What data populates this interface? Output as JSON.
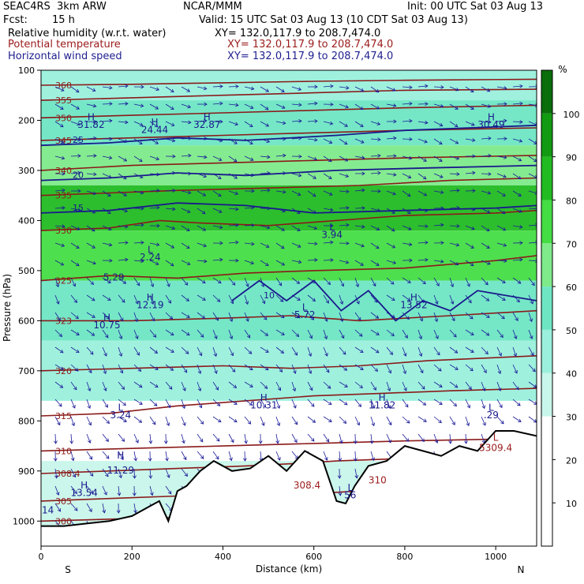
{
  "header": {
    "model": "SEAC4RS  3km ARW",
    "org": "NCAR/MMM",
    "init": "Init: 00 UTC Sat 03 Aug 13",
    "fcst_label": "Fcst:",
    "fcst_value": "15 h",
    "valid": "Valid: 15 UTC Sat 03 Aug 13 (10 CDT Sat 03 Aug 13)",
    "fields": [
      {
        "name": "Relative humidity (w.r.t. water)",
        "xy": "XY= 132.0,117.9 to 208.7,474.0",
        "color": "#000000"
      },
      {
        "name": "Potential temperature",
        "xy": "XY= 132.0,117.9 to 208.7,474.0",
        "color": "#9b1b1b"
      },
      {
        "name": "Horizontal wind speed",
        "xy": "XY= 132.0,117.9 to 208.7,474.0",
        "color": "#1f1f8f"
      }
    ]
  },
  "colors": {
    "theta": "#8b1a1a",
    "wind_contour": "#1a1a8c",
    "vector": "#1a1a99",
    "terrain": "#000000"
  },
  "chart_data": {
    "type": "heatmap",
    "xlabel": "Distance (km)",
    "ylabel": "Pressure (hPa)",
    "xlim": [
      0,
      1090
    ],
    "ylim": [
      1050,
      100
    ],
    "xticks": [
      0,
      200,
      400,
      600,
      800,
      1000
    ],
    "yticks": [
      100,
      200,
      300,
      400,
      500,
      600,
      700,
      800,
      900,
      1000
    ],
    "x_end_labels": {
      "left": "S",
      "right": "N"
    },
    "colorbar": {
      "unit": "%",
      "ticks": [
        10,
        20,
        30,
        40,
        50,
        60,
        70,
        80,
        90,
        100
      ],
      "levels": [
        {
          "from": 0,
          "to": 30,
          "color": "#ffffff"
        },
        {
          "from": 30,
          "to": 40,
          "color": "#c8f6ea"
        },
        {
          "from": 40,
          "to": 50,
          "color": "#9af0dc"
        },
        {
          "from": 50,
          "to": 60,
          "color": "#6ee6c4"
        },
        {
          "from": 60,
          "to": 70,
          "color": "#7eea8a"
        },
        {
          "from": 70,
          "to": 80,
          "color": "#44dd44"
        },
        {
          "from": 80,
          "to": 90,
          "color": "#22bb22"
        },
        {
          "from": 90,
          "to": 100,
          "color": "#129a12"
        },
        {
          "from": 100,
          "to": 110,
          "color": "#0a6e0a"
        }
      ]
    },
    "rh_bands": [
      {
        "p_top": 100,
        "p_bot": 160,
        "rh": 45
      },
      {
        "p_top": 160,
        "p_bot": 250,
        "rh": 55
      },
      {
        "p_top": 250,
        "p_bot": 330,
        "rh": 65
      },
      {
        "p_top": 330,
        "p_bot": 420,
        "rh": 80
      },
      {
        "p_top": 420,
        "p_bot": 520,
        "rh": 70
      },
      {
        "p_top": 520,
        "p_bot": 640,
        "rh": 50
      },
      {
        "p_top": 640,
        "p_bot": 760,
        "rh": 40
      },
      {
        "p_top": 760,
        "p_bot": 880,
        "rh": 25
      },
      {
        "p_top": 880,
        "p_bot": 1010,
        "rh": 35
      }
    ],
    "theta_contours": [
      {
        "label": "300",
        "points": [
          [
            0,
            1000
          ],
          [
            200,
            995
          ],
          [
            400,
            990
          ],
          [
            600,
            990
          ],
          [
            800,
            985
          ],
          [
            1090,
            985
          ]
        ]
      },
      {
        "label": "305",
        "points": [
          [
            0,
            960
          ],
          [
            150,
            955
          ],
          [
            300,
            950
          ],
          [
            450,
            945
          ],
          [
            600,
            945
          ],
          [
            700,
            940
          ],
          [
            850,
            935
          ],
          [
            1090,
            930
          ]
        ]
      },
      {
        "label": "308.4",
        "points": [
          [
            0,
            905
          ],
          [
            150,
            900
          ],
          [
            300,
            895
          ],
          [
            450,
            890
          ],
          [
            560,
            885
          ],
          [
            650,
            880
          ],
          [
            800,
            875
          ],
          [
            1000,
            870
          ],
          [
            1090,
            868
          ]
        ]
      },
      {
        "label": "310",
        "points": [
          [
            0,
            860
          ],
          [
            200,
            855
          ],
          [
            400,
            850
          ],
          [
            600,
            845
          ],
          [
            800,
            840
          ],
          [
            1090,
            835
          ]
        ]
      },
      {
        "label": "315",
        "points": [
          [
            0,
            790
          ],
          [
            150,
            785
          ],
          [
            300,
            770
          ],
          [
            450,
            760
          ],
          [
            600,
            750
          ],
          [
            750,
            745
          ],
          [
            900,
            740
          ],
          [
            1090,
            735
          ]
        ]
      },
      {
        "label": "320",
        "points": [
          [
            0,
            700
          ],
          [
            200,
            695
          ],
          [
            400,
            690
          ],
          [
            550,
            695
          ],
          [
            700,
            690
          ],
          [
            850,
            680
          ],
          [
            1090,
            670
          ]
        ]
      },
      {
        "label": "323",
        "points": [
          [
            0,
            600
          ],
          [
            200,
            600
          ],
          [
            400,
            595
          ],
          [
            550,
            590
          ],
          [
            700,
            600
          ],
          [
            900,
            590
          ],
          [
            1090,
            580
          ]
        ]
      },
      {
        "label": "325",
        "points": [
          [
            0,
            520
          ],
          [
            150,
            510
          ],
          [
            300,
            515
          ],
          [
            450,
            505
          ],
          [
            600,
            500
          ],
          [
            800,
            495
          ],
          [
            1000,
            480
          ],
          [
            1090,
            470
          ]
        ]
      },
      {
        "label": "330",
        "points": [
          [
            0,
            420
          ],
          [
            150,
            415
          ],
          [
            260,
            400
          ],
          [
            350,
            405
          ],
          [
            500,
            410
          ],
          [
            650,
            400
          ],
          [
            800,
            390
          ],
          [
            1000,
            385
          ],
          [
            1090,
            380
          ]
        ]
      },
      {
        "label": "335",
        "points": [
          [
            0,
            350
          ],
          [
            150,
            345
          ],
          [
            300,
            340
          ],
          [
            500,
            335
          ],
          [
            700,
            330
          ],
          [
            900,
            320
          ],
          [
            1090,
            315
          ]
        ]
      },
      {
        "label": "340",
        "points": [
          [
            0,
            300
          ],
          [
            200,
            290
          ],
          [
            400,
            285
          ],
          [
            600,
            280
          ],
          [
            800,
            275
          ],
          [
            1090,
            270
          ]
        ]
      },
      {
        "label": "345",
        "points": [
          [
            0,
            240
          ],
          [
            200,
            235
          ],
          [
            400,
            230
          ],
          [
            600,
            225
          ],
          [
            800,
            220
          ],
          [
            1090,
            215
          ]
        ]
      },
      {
        "label": "350",
        "points": [
          [
            0,
            195
          ],
          [
            200,
            190
          ],
          [
            400,
            185
          ],
          [
            600,
            180
          ],
          [
            800,
            175
          ],
          [
            1090,
            170
          ]
        ]
      },
      {
        "label": "355",
        "points": [
          [
            0,
            160
          ],
          [
            200,
            155
          ],
          [
            400,
            150
          ],
          [
            600,
            145
          ],
          [
            800,
            140
          ],
          [
            1090,
            138
          ]
        ]
      },
      {
        "label": "360",
        "points": [
          [
            0,
            130
          ],
          [
            200,
            128
          ],
          [
            400,
            125
          ],
          [
            600,
            122
          ],
          [
            800,
            120
          ],
          [
            1090,
            118
          ]
        ]
      }
    ],
    "wind_contours": [
      {
        "label": "25",
        "points": [
          [
            0,
            250
          ],
          [
            150,
            245
          ],
          [
            300,
            235
          ],
          [
            450,
            240
          ],
          [
            650,
            230
          ],
          [
            800,
            220
          ],
          [
            1090,
            210
          ]
        ]
      },
      {
        "label": "20",
        "points": [
          [
            0,
            320
          ],
          [
            150,
            315
          ],
          [
            300,
            305
          ],
          [
            450,
            310
          ],
          [
            650,
            300
          ],
          [
            850,
            295
          ],
          [
            1090,
            290
          ]
        ]
      },
      {
        "label": "15",
        "points": [
          [
            0,
            385
          ],
          [
            150,
            380
          ],
          [
            300,
            365
          ],
          [
            450,
            370
          ],
          [
            600,
            385
          ],
          [
            800,
            380
          ],
          [
            1000,
            375
          ],
          [
            1090,
            370
          ]
        ]
      },
      {
        "label": "10",
        "points": [
          [
            420,
            560
          ],
          [
            480,
            520
          ],
          [
            540,
            560
          ],
          [
            600,
            520
          ],
          [
            660,
            580
          ],
          [
            720,
            540
          ],
          [
            780,
            600
          ],
          [
            840,
            560
          ],
          [
            900,
            580
          ],
          [
            960,
            540
          ],
          [
            1090,
            560
          ]
        ]
      }
    ],
    "labels": [
      {
        "text": "H",
        "x": 240,
        "y": 560,
        "color": "#1a1a8c"
      },
      {
        "text": "12.19",
        "x": 240,
        "y": 575,
        "color": "#1a1a8c"
      },
      {
        "text": "H",
        "x": 250,
        "y": 210,
        "color": "#1a1a8c"
      },
      {
        "text": "24.44",
        "x": 250,
        "y": 225,
        "color": "#1a1a8c"
      },
      {
        "text": "H",
        "x": 145,
        "y": 600,
        "color": "#1a1a8c"
      },
      {
        "text": "10.75",
        "x": 145,
        "y": 615,
        "color": "#1a1a8c"
      },
      {
        "text": "L",
        "x": 175,
        "y": 780,
        "color": "#1a1a8c"
      },
      {
        "text": "3.24",
        "x": 175,
        "y": 795,
        "color": "#1a1a8c"
      },
      {
        "text": "L",
        "x": 240,
        "y": 465,
        "color": "#1a1a8c"
      },
      {
        "text": "2.24",
        "x": 240,
        "y": 480,
        "color": "#1a1a8c"
      },
      {
        "text": "5.29",
        "x": 160,
        "y": 520,
        "color": "#1a1a8c"
      },
      {
        "text": "H",
        "x": 490,
        "y": 760,
        "color": "#1a1a8c"
      },
      {
        "text": "10.31",
        "x": 490,
        "y": 775,
        "color": "#1a1a8c"
      },
      {
        "text": "L",
        "x": 580,
        "y": 580,
        "color": "#1a1a8c"
      },
      {
        "text": "5.72",
        "x": 580,
        "y": 595,
        "color": "#1a1a8c"
      },
      {
        "text": "L",
        "x": 640,
        "y": 420,
        "color": "#1a1a8c"
      },
      {
        "text": "3.94",
        "x": 640,
        "y": 435,
        "color": "#1a1a8c"
      },
      {
        "text": "H",
        "x": 750,
        "y": 760,
        "color": "#1a1a8c"
      },
      {
        "text": "11.82",
        "x": 750,
        "y": 775,
        "color": "#1a1a8c"
      },
      {
        "text": "H",
        "x": 820,
        "y": 560,
        "color": "#1a1a8c"
      },
      {
        "text": "13.52",
        "x": 820,
        "y": 575,
        "color": "#1a1a8c"
      },
      {
        "text": "L",
        "x": 990,
        "y": 780,
        "color": "#1a1a8c"
      },
      {
        "text": ".29",
        "x": 990,
        "y": 795,
        "color": "#1a1a8c"
      },
      {
        "text": "H",
        "x": 990,
        "y": 200,
        "color": "#1a1a8c"
      },
      {
        "text": "30.49",
        "x": 990,
        "y": 215,
        "color": "#1a1a8c"
      },
      {
        "text": "H",
        "x": 110,
        "y": 200,
        "color": "#1a1a8c"
      },
      {
        "text": "31.82",
        "x": 110,
        "y": 215,
        "color": "#1a1a8c"
      },
      {
        "text": "H",
        "x": 365,
        "y": 200,
        "color": "#1a1a8c"
      },
      {
        "text": "32.87",
        "x": 365,
        "y": 215,
        "color": "#1a1a8c"
      },
      {
        "text": "L",
        "x": 1000,
        "y": 840,
        "color": "#9b1b1b"
      },
      {
        "text": "5309.4",
        "x": 1000,
        "y": 860,
        "color": "#9b1b1b"
      },
      {
        "text": "308.4",
        "x": 585,
        "y": 935,
        "color": "#9b1b1b"
      },
      {
        "text": "310",
        "x": 740,
        "y": 925,
        "color": "#9b1b1b"
      },
      {
        "text": "H",
        "x": 175,
        "y": 875,
        "color": "#1a1a8c"
      },
      {
        "text": "11.29",
        "x": 175,
        "y": 905,
        "color": "#1a1a8c"
      },
      {
        "text": "H",
        "x": 95,
        "y": 935,
        "color": "#1a1a8c"
      },
      {
        "text": "13.54",
        "x": 95,
        "y": 950,
        "color": "#1a1a8c"
      },
      {
        "text": "14",
        "x": 15,
        "y": 985,
        "color": "#1a1a8c"
      },
      {
        "text": "L",
        "x": 680,
        "y": 940,
        "color": "#1a1a8c"
      },
      {
        "text": "56",
        "x": 680,
        "y": 955,
        "color": "#1a1a8c"
      }
    ],
    "terrain": {
      "x": [
        0,
        50,
        100,
        150,
        200,
        230,
        260,
        280,
        300,
        320,
        350,
        380,
        420,
        460,
        500,
        540,
        580,
        620,
        650,
        670,
        690,
        720,
        760,
        800,
        840,
        880,
        920,
        960,
        1000,
        1040,
        1090
      ],
      "p": [
        1010,
        1010,
        1005,
        1000,
        990,
        975,
        960,
        1000,
        940,
        930,
        900,
        880,
        900,
        895,
        870,
        900,
        860,
        880,
        960,
        965,
        930,
        890,
        880,
        850,
        860,
        870,
        850,
        860,
        820,
        820,
        830
      ]
    }
  }
}
